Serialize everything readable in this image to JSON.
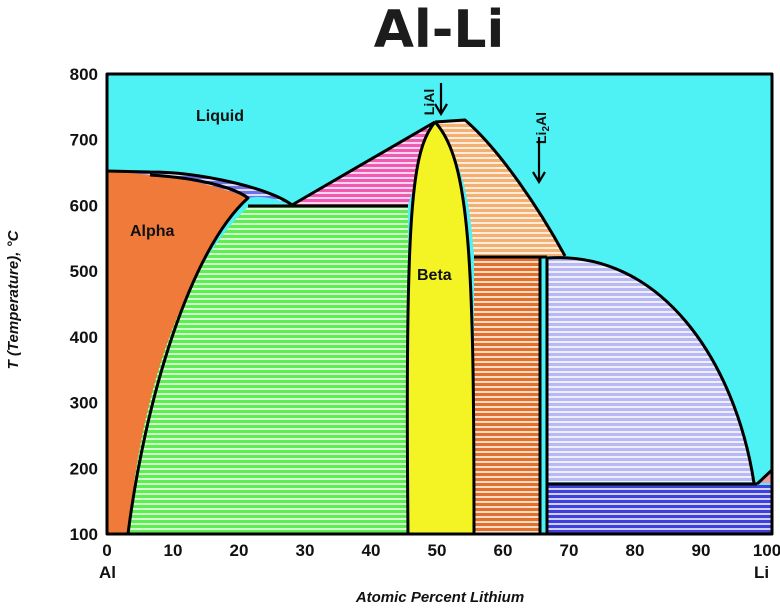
{
  "title": "Al-Li",
  "x_axis": {
    "title": "Atomic Percent Lithium",
    "ticks": [
      "0",
      "10",
      "20",
      "30",
      "40",
      "50",
      "60",
      "70",
      "80",
      "90",
      "100"
    ],
    "left_end": "Al",
    "right_end": "Li"
  },
  "y_axis": {
    "title": "T (Temperature), °C",
    "ticks": [
      "100",
      "200",
      "300",
      "400",
      "500",
      "600",
      "700",
      "800"
    ]
  },
  "regions": {
    "liquid": "Liquid",
    "alpha": "Alpha",
    "beta": "Beta"
  },
  "compounds": {
    "lial": "LiAl",
    "li2al_prefix": "Li",
    "li2al_sub": "2",
    "li2al_suffix": "Al"
  },
  "colors": {
    "liquid": "#4ef1f4",
    "alpha": "#f07a3a",
    "beta": "#f4f425",
    "alpha_plus_liquid": "#6f6fe6",
    "alpha_plus_beta": "#5bf050",
    "beta_plus_liquid_left": "#f05ab2",
    "beta_plus_liquid_right": "#f4b070",
    "beta_plus_compound": "#e0702c",
    "li2al_plus_liquid": "#b8b8f4",
    "li2al_plus_li": "#3f40dc",
    "li_corner": "#f09aa8"
  },
  "chart_data": {
    "type": "phase-diagram",
    "title": "Al-Li",
    "xlabel": "Atomic Percent Lithium",
    "ylabel": "T (Temperature), °C",
    "xlim": [
      0,
      100
    ],
    "ylim": [
      100,
      800
    ],
    "key_points": {
      "al_melting": [
        0,
        660
      ],
      "alpha_liquid_eutectic": [
        28,
        600
      ],
      "lial_congruent_melt": [
        50,
        718
      ],
      "li2al_peritectic": [
        69,
        520
      ],
      "li_eutectic": [
        98,
        180
      ]
    }
  }
}
